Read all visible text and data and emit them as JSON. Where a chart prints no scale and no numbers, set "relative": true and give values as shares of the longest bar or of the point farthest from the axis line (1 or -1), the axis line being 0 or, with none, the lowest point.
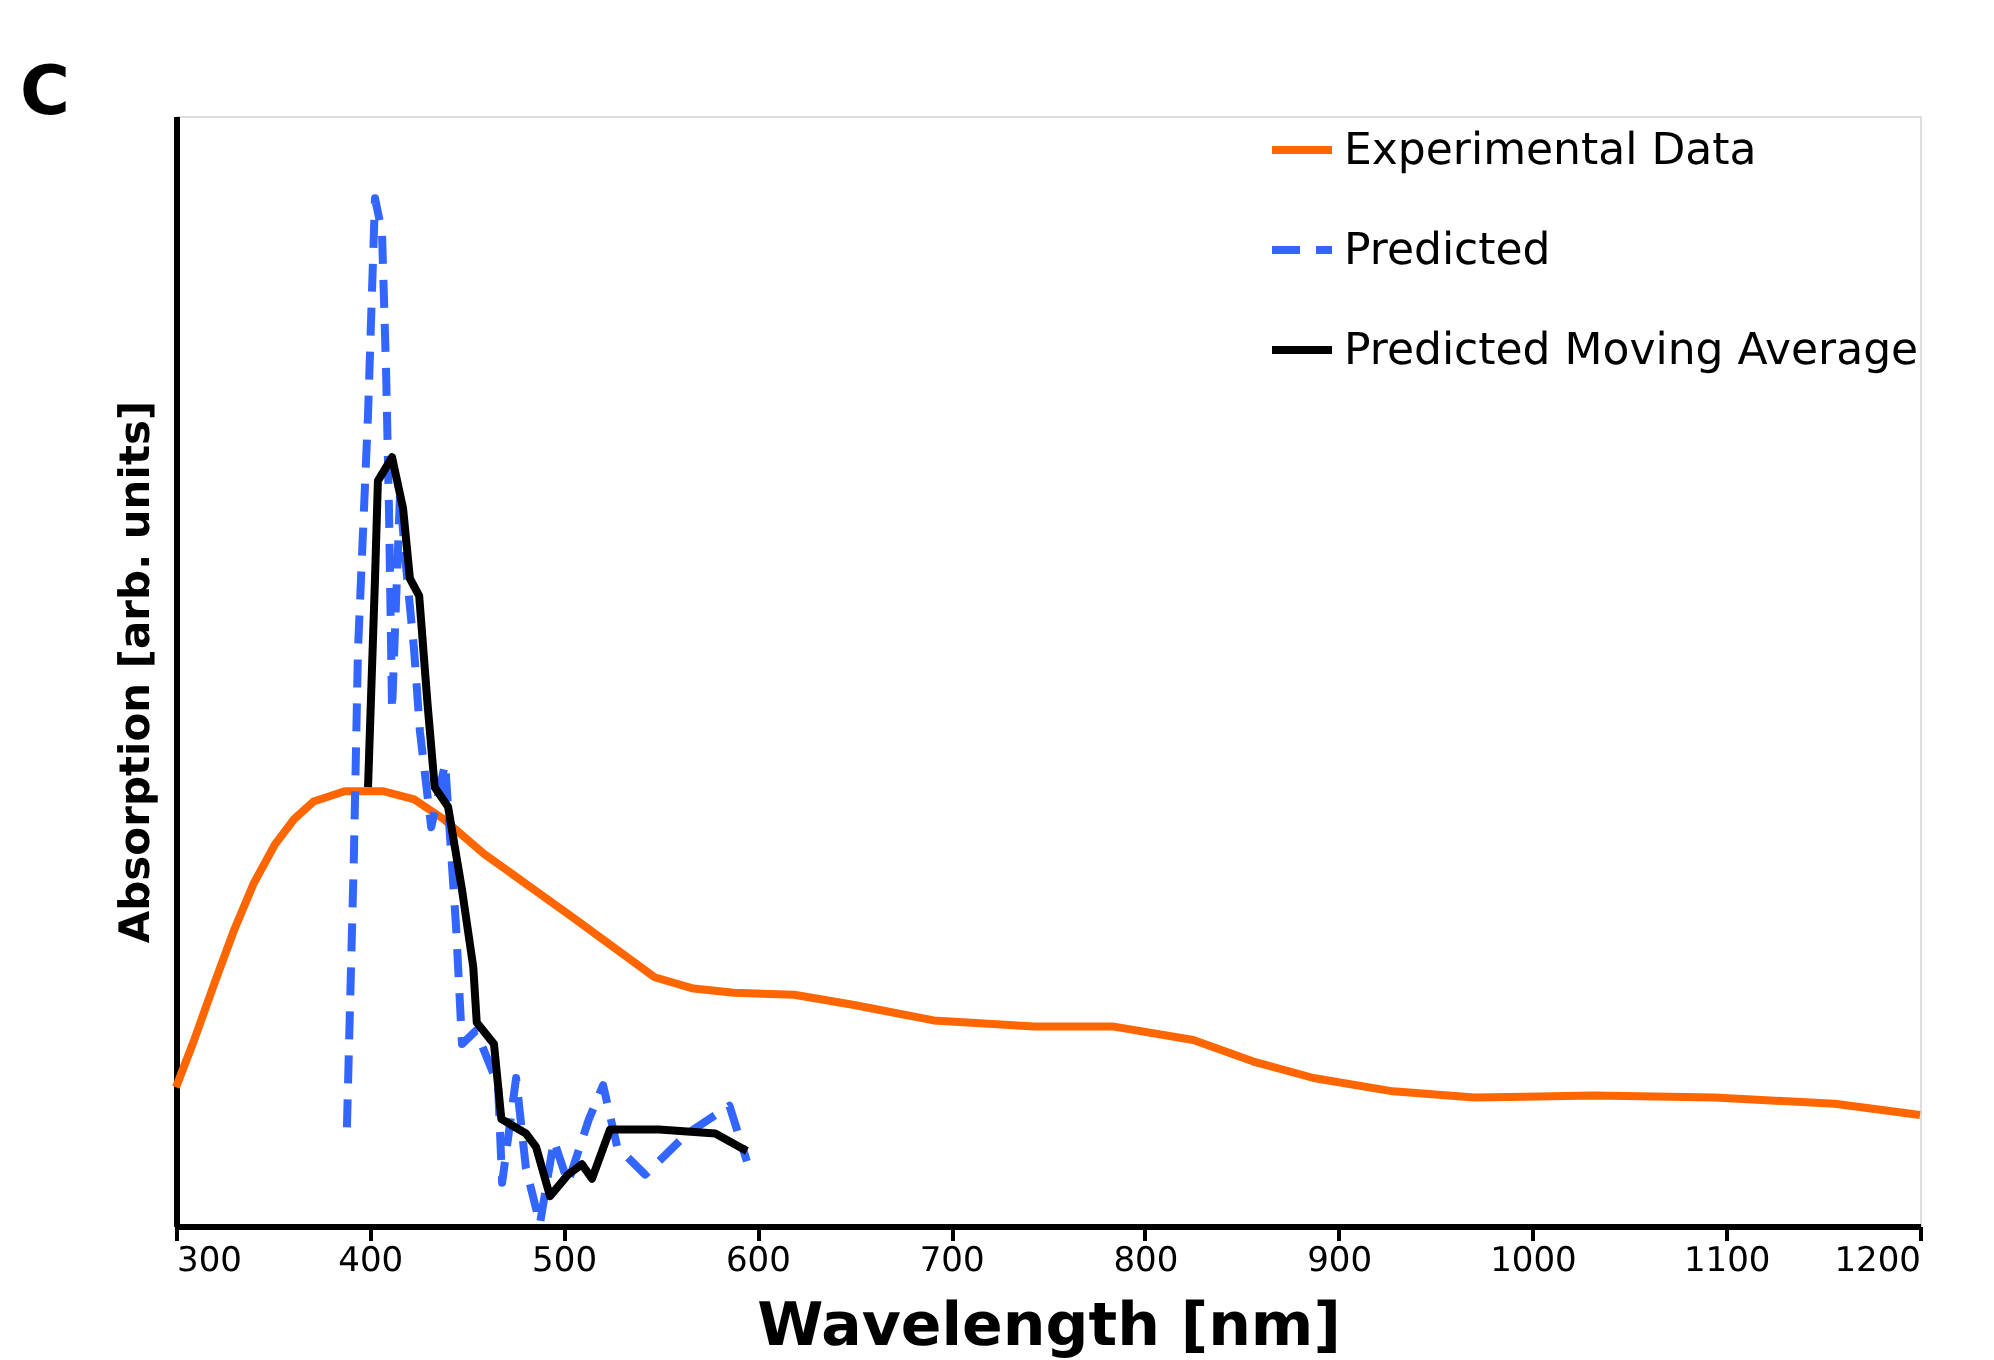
{
  "chart_data": {
    "type": "line",
    "relative": true,
    "xlabel": "Wavelength [nm]",
    "ylabel": "Absorption [arb. units]",
    "annotations": [
      "C"
    ],
    "xlim": [
      300,
      1200
    ],
    "xticks": [
      300,
      400,
      500,
      600,
      700,
      800,
      900,
      1000,
      1100,
      1200
    ],
    "grid": false,
    "legend": "top right",
    "marker": "none",
    "series": [
      {
        "name": "Experimental Data",
        "color": "#ff6600",
        "line_style": "solid",
        "x": [
          300,
          309,
          320,
          330,
          340,
          351,
          361,
          371,
          387,
          407,
          423,
          438,
          459,
          485,
          505,
          526,
          547,
          567,
          588,
          619,
          650,
          691,
          743,
          784,
          825,
          856,
          887,
          928,
          970,
          1032,
          1094,
          1156,
          1200
        ],
        "values": [
          0.135,
          0.179,
          0.237,
          0.288,
          0.333,
          0.371,
          0.396,
          0.413,
          0.423,
          0.423,
          0.415,
          0.396,
          0.362,
          0.327,
          0.3,
          0.271,
          0.242,
          0.231,
          0.227,
          0.225,
          0.215,
          0.2,
          0.194,
          0.194,
          0.181,
          0.16,
          0.144,
          0.131,
          0.125,
          0.127,
          0.125,
          0.119,
          0.108
        ]
      },
      {
        "name": "Predicted",
        "color": "#3366ff",
        "line_style": "dashed",
        "x": [
          388.2,
          391.8,
          393.9,
          399.1,
          402.7,
          406.3,
          408.4,
          409.9,
          411.5,
          415.6,
          418.7,
          422.8,
          425.9,
          431.7,
          438.9,
          444.5,
          447.6,
          454.8,
          466.2,
          468.3,
          475.5,
          480.6,
          487.8,
          495.0,
          502.3,
          513.1,
          520.4,
          527.7,
          542.1,
          563.9,
          585.6,
          594.6
        ],
        "values": [
          0.096,
          0.36,
          0.56,
          0.79,
          1.0,
          0.967,
          0.833,
          0.698,
          0.502,
          0.712,
          0.642,
          0.562,
          0.481,
          0.388,
          0.45,
          0.292,
          0.177,
          0.19,
          0.137,
          0.042,
          0.144,
          0.056,
          0.002,
          0.083,
          0.042,
          0.104,
          0.137,
          0.077,
          0.05,
          0.09,
          0.117,
          0.063
        ]
      },
      {
        "name": "Predicted Moving Average",
        "color": "#000000",
        "line_style": "solid",
        "x": [
          399.1,
          402.7,
          404.2,
          411.5,
          417.2,
          420.7,
          425.5,
          429.8,
          433.5,
          440.4,
          447.6,
          453.4,
          455.2,
          464.1,
          467.9,
          480.6,
          485.8,
          493.0,
          502.3,
          509.5,
          514.7,
          524.0,
          549.3,
          578.3,
          594.6
        ],
        "values": [
          0.427,
          0.63,
          0.725,
          0.748,
          0.698,
          0.63,
          0.613,
          0.508,
          0.427,
          0.408,
          0.327,
          0.252,
          0.198,
          0.177,
          0.104,
          0.09,
          0.077,
          0.029,
          0.05,
          0.06,
          0.046,
          0.094,
          0.094,
          0.09,
          0.073
        ]
      }
    ]
  }
}
